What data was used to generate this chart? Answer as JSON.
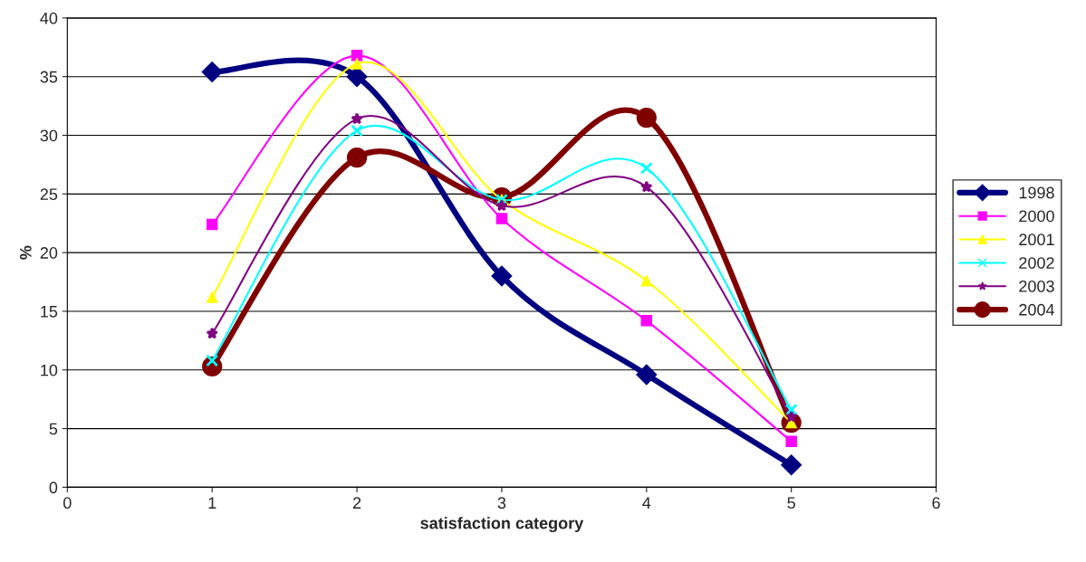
{
  "chart_data": {
    "type": "line",
    "xlabel": "satisfaction category",
    "ylabel": "%",
    "x": [
      1,
      2,
      3,
      4,
      5
    ],
    "series": [
      {
        "name": "1998",
        "color": "#000080",
        "marker": "diamond",
        "values": [
          35.4,
          35.0,
          18.0,
          9.6,
          1.9
        ]
      },
      {
        "name": "2000",
        "color": "#ff00ff",
        "marker": "square",
        "values": [
          22.4,
          36.8,
          22.9,
          14.2,
          3.9
        ]
      },
      {
        "name": "2001",
        "color": "#ffff00",
        "marker": "triangle",
        "values": [
          16.2,
          36.1,
          24.5,
          17.6,
          5.5
        ]
      },
      {
        "name": "2002",
        "color": "#00ffff",
        "marker": "cross",
        "values": [
          10.8,
          30.4,
          24.5,
          27.2,
          6.6
        ]
      },
      {
        "name": "2003",
        "color": "#800080",
        "marker": "star",
        "values": [
          13.1,
          31.4,
          24.0,
          25.6,
          6.0
        ]
      },
      {
        "name": "2004",
        "color": "#800000",
        "marker": "circle",
        "values": [
          10.3,
          28.1,
          24.7,
          31.5,
          5.5
        ]
      }
    ],
    "xlim": [
      0,
      6
    ],
    "xticks": [
      0,
      1,
      2,
      3,
      4,
      5,
      6
    ],
    "ylim": [
      0,
      40
    ],
    "yticks": [
      0,
      5,
      10,
      15,
      20,
      25,
      30,
      35,
      40
    ],
    "grid": "y",
    "legend": "right"
  }
}
